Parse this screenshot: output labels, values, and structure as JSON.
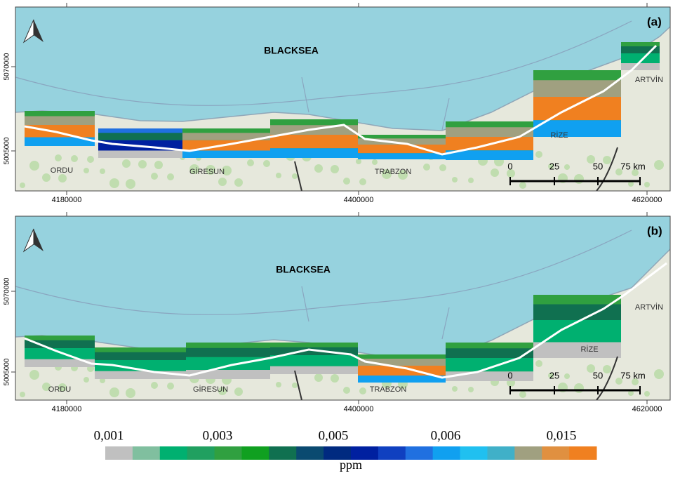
{
  "panels": [
    {
      "label": "(a)",
      "sea_label": "BLACKSEA",
      "places": [
        "ORDU",
        "GİRESUN",
        "TRABZON",
        "RİZE",
        "ARTVİN"
      ],
      "scale_labels": [
        "0",
        "25",
        "50",
        "75 km"
      ],
      "x_ticks": [
        "4180000",
        "4400000",
        "4620000"
      ],
      "y_ticks": [
        "5070000",
        "5005000"
      ]
    },
    {
      "label": "(b)",
      "sea_label": "BLACKSEA",
      "places": [
        "ORDU",
        "GİRESUN",
        "TRABZON",
        "RİZE",
        "ARTVİN"
      ],
      "scale_labels": [
        "0",
        "25",
        "50",
        "75 km"
      ],
      "x_ticks": [
        "4180000",
        "4400000",
        "4620000"
      ],
      "y_ticks": [
        "5070000",
        "5005000"
      ]
    }
  ],
  "legend": {
    "ticks": [
      "0,001",
      "0,003",
      "0,005",
      "0,006",
      "0,015"
    ],
    "unit": "ppm",
    "colors": [
      "#c0c0c0",
      "#80bf9f",
      "#00b070",
      "#20a060",
      "#30a040",
      "#10a020",
      "#107050",
      "#0a4a70",
      "#002a80",
      "#0020a0",
      "#1040c0",
      "#2070e0",
      "#10a0f0",
      "#20c0f0",
      "#40b0c8",
      "#a0a080",
      "#e09040",
      "#f08020"
    ]
  }
}
